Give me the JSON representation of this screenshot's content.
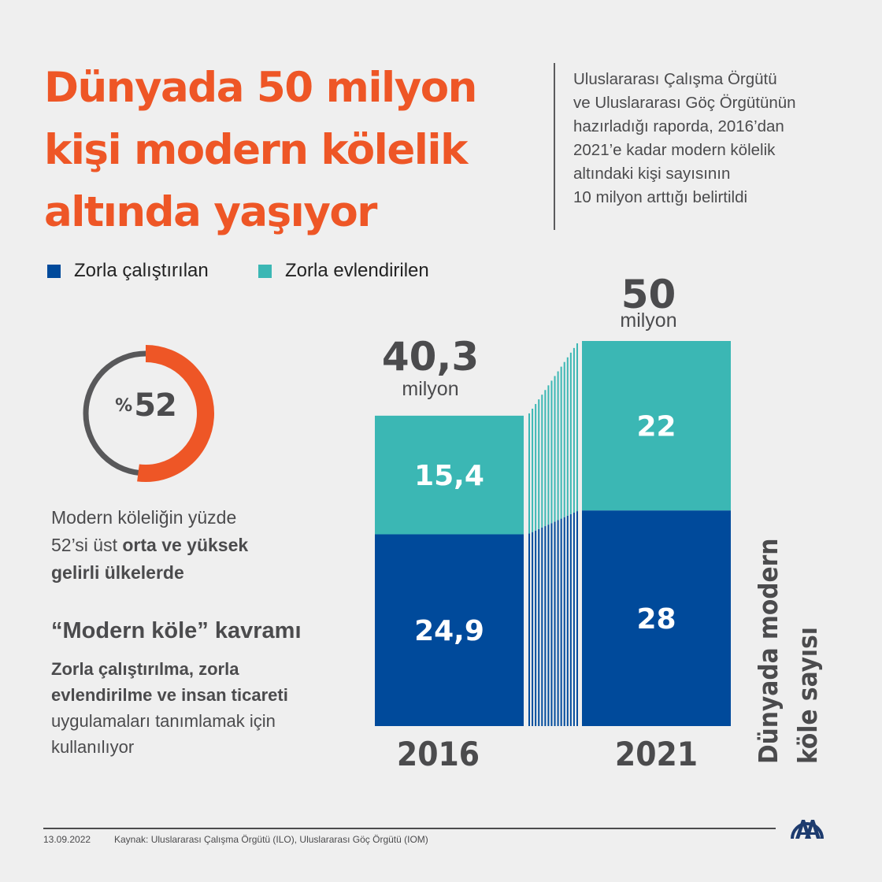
{
  "title_lines": [
    "Dünyada 50 milyon",
    "kişi modern kölelik",
    "altında yaşıyor"
  ],
  "intro_lines": [
    "Uluslararası Çalışma Örgütü",
    "ve Uluslararası Göç Örgütünün",
    "hazırladığı raporda, 2016’dan",
    "2021’e kadar modern kölelik",
    "altındaki kişi sayısının",
    "10 milyon arttığı belirtildi"
  ],
  "legend": [
    {
      "label": "Zorla çalıştırılan",
      "color": "#004a9b"
    },
    {
      "label": "Zorla evlendirilen",
      "color": "#3bb7b4"
    }
  ],
  "donut": {
    "percent_symbol": "%",
    "value_text": "52",
    "fraction": 0.52,
    "fill_color": "#ee5626",
    "track_color": "#58585a"
  },
  "info": {
    "line1": "Modern köleliğin yüzde",
    "line2_regular": "52’si üst ",
    "line2_bold": "orta ve yüksek",
    "line3_bold": "gelirli ülkelerde"
  },
  "concept": {
    "title": "“Modern köle” kavramı",
    "line1_bold": "Zorla çalıştırılma, zorla",
    "line2_bold": "evlendirilme ve insan ticareti",
    "line3": "uygulamaları tanımlamak için",
    "line4": "kullanılıyor"
  },
  "side_title": [
    "Dünyada modern",
    "köle sayısı"
  ],
  "chart_data": {
    "type": "bar",
    "stacked": true,
    "title": "Dünyada modern köle sayısı",
    "categories": [
      "2016",
      "2021"
    ],
    "series": [
      {
        "name": "Zorla çalıştırılan",
        "values": [
          24.9,
          28
        ],
        "labels": [
          "24,9",
          "28"
        ],
        "color": "#004a9b"
      },
      {
        "name": "Zorla evlendirilen",
        "values": [
          15.4,
          22
        ],
        "labels": [
          "15,4",
          "22"
        ],
        "color": "#3bb7b4"
      }
    ],
    "totals": [
      40.3,
      50
    ],
    "total_labels": [
      "40,3",
      "50"
    ],
    "total_unit": "milyon",
    "xlabel": "",
    "ylabel": "",
    "ylim": [
      0,
      50
    ],
    "legend_position": "top-left",
    "grid": false
  },
  "footer": {
    "date": "13.09.2022",
    "source": "Kaynak: Uluslararası Çalışma Örgütü (ILO), Uluslararası Göç Örgütü (IOM)",
    "logo": "AA"
  }
}
